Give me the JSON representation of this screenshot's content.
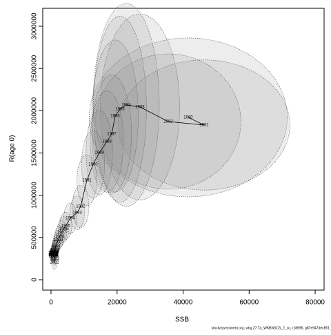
{
  "chart_data": {
    "type": "line",
    "x_label": "SSB",
    "y_label": "R(age 0)",
    "footer": "stockassessment.org, whg.27.7a_WKBNSCS_2_co, r18696, g87e947dec851",
    "labels": [
      "1980",
      "1981",
      "1982",
      "1983",
      "1984",
      "1985",
      "1986",
      "1987",
      "1988",
      "1989",
      "1990",
      "1991",
      "1992",
      "1993",
      "1994",
      "1995",
      "1996",
      "1997",
      "1998",
      "1999",
      "2000",
      "2001",
      "2002",
      "2003",
      "2004",
      "2005",
      "2006",
      "2007",
      "2008",
      "2009",
      "2010",
      "2011",
      "2012",
      "2013",
      "2014",
      "2015",
      "2016",
      "2017",
      "2018",
      "2019",
      "2020",
      "2021",
      "2022"
    ],
    "x": [
      41560,
      46360,
      35500,
      26940,
      22770,
      20890,
      19420,
      18380,
      16920,
      14620,
      12740,
      10860,
      8980,
      7940,
      5850,
      4500,
      3800,
      3200,
      2600,
      2200,
      1800,
      1500,
      1300,
      1100,
      900,
      800,
      700,
      650,
      600,
      700,
      800,
      900,
      1000,
      1100,
      900,
      800,
      700,
      600,
      700,
      800,
      900,
      1100,
      1000
    ],
    "values": [
      1921000,
      1831000,
      1872000,
      2044000,
      2068000,
      2019000,
      1937000,
      1725000,
      1635000,
      1504000,
      1365000,
      1177000,
      866000,
      793000,
      728000,
      640000,
      600000,
      560000,
      510000,
      470000,
      440000,
      400000,
      380000,
      350000,
      330000,
      320000,
      300000,
      310000,
      290000,
      280000,
      300000,
      320000,
      340000,
      330000,
      310000,
      290000,
      300000,
      320000,
      310000,
      300000,
      280000,
      250000,
      204000
    ],
    "ellipse_rx": [
      30000,
      26000,
      22000,
      12000,
      10000,
      8000,
      7000,
      6000,
      5000,
      4000,
      3500,
      3000,
      2500,
      2200,
      2000,
      1800,
      1600,
      1500,
      1400,
      1300,
      1200,
      1100,
      1000,
      900,
      800,
      800,
      700,
      700,
      700,
      700,
      700,
      700,
      700,
      700,
      700,
      700,
      700,
      700,
      700,
      700,
      700,
      800,
      800
    ],
    "ellipse_ry": [
      940000,
      770000,
      800000,
      1100000,
      1200000,
      1100000,
      900000,
      700000,
      600000,
      500000,
      400000,
      300000,
      250000,
      200000,
      180000,
      160000,
      150000,
      140000,
      130000,
      120000,
      110000,
      100000,
      100000,
      90000,
      90000,
      80000,
      80000,
      80000,
      80000,
      80000,
      80000,
      80000,
      80000,
      80000,
      80000,
      80000,
      80000,
      80000,
      80000,
      80000,
      80000,
      80000,
      80000
    ],
    "line_color": "#000000",
    "label_color": "#ff0000",
    "ellipse_color": "#888888",
    "xlim": [
      -2500,
      82700
    ],
    "ylim": [
      -122600,
      3212000
    ],
    "xticks": [
      0,
      20000,
      40000,
      60000,
      80000
    ],
    "yticks": [
      0,
      500000,
      1000000,
      1500000,
      2000000,
      2500000,
      3000000
    ]
  }
}
